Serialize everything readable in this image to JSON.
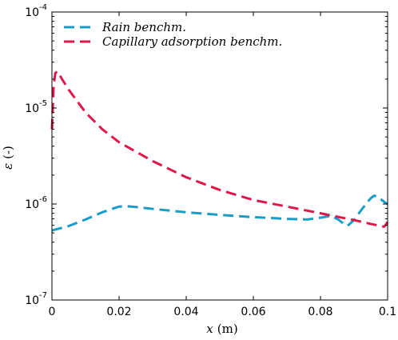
{
  "chart_data": {
    "type": "line",
    "xlabel": "x",
    "xlabel_unit": "(m)",
    "ylabel": "ε",
    "ylabel_unit": "(-)",
    "xlim": [
      0,
      0.1
    ],
    "ylim": [
      1e-07,
      0.0001
    ],
    "yscale": "log",
    "grid": false,
    "legend_position": "top-left",
    "xticks": [
      {
        "value": 0,
        "label": "0"
      },
      {
        "value": 0.02,
        "label": "0.02"
      },
      {
        "value": 0.04,
        "label": "0.04"
      },
      {
        "value": 0.06,
        "label": "0.06"
      },
      {
        "value": 0.08,
        "label": "0.08"
      },
      {
        "value": 0.1,
        "label": "0.1"
      }
    ],
    "yticks": [
      {
        "value": 1e-07,
        "base": "10",
        "exp": "-7"
      },
      {
        "value": 1e-06,
        "base": "10",
        "exp": "-6"
      },
      {
        "value": 1e-05,
        "base": "10",
        "exp": "-5"
      },
      {
        "value": 0.0001,
        "base": "10",
        "exp": "-4"
      }
    ],
    "series": [
      {
        "name": "Rain benchm.",
        "color": "#1a9cc8",
        "dash": "dashed",
        "x": [
          0,
          0.005,
          0.01,
          0.015,
          0.02,
          0.022,
          0.025,
          0.03,
          0.04,
          0.05,
          0.06,
          0.07,
          0.076,
          0.08,
          0.083,
          0.085,
          0.087,
          0.088,
          0.09,
          0.092,
          0.094,
          0.095,
          0.096,
          0.097,
          0.098,
          0.099,
          0.1
        ],
        "y": [
          5.3e-07,
          5.9e-07,
          6.9e-07,
          8.2e-07,
          9.4e-07,
          9.5e-07,
          9.3e-07,
          8.9e-07,
          8.2e-07,
          7.7e-07,
          7.3e-07,
          7e-07,
          6.9e-07,
          7.2e-07,
          7.5e-07,
          7e-07,
          6.2e-07,
          5.9e-07,
          6.8e-07,
          8.5e-07,
          1.05e-06,
          1.15e-06,
          1.22e-06,
          1.2e-06,
          1.12e-06,
          1.05e-06,
          1e-06
        ]
      },
      {
        "name": "Capillary adsorption benchm.",
        "color": "#e0174a",
        "dash": "dashed",
        "x": [
          0,
          0.0005,
          0.001,
          0.0015,
          0.002,
          0.003,
          0.005,
          0.01,
          0.015,
          0.02,
          0.03,
          0.04,
          0.05,
          0.06,
          0.07,
          0.08,
          0.09,
          0.095,
          0.099,
          0.1
        ],
        "y": [
          6e-06,
          1.7e-05,
          2.3e-05,
          2.4e-05,
          2.3e-05,
          2e-05,
          1.55e-05,
          9e-06,
          6e-06,
          4.4e-06,
          2.8e-06,
          1.9e-06,
          1.4e-06,
          1.1e-06,
          9.4e-07,
          8e-07,
          6.8e-07,
          6.2e-07,
          5.8e-07,
          6.5e-07
        ]
      }
    ]
  }
}
